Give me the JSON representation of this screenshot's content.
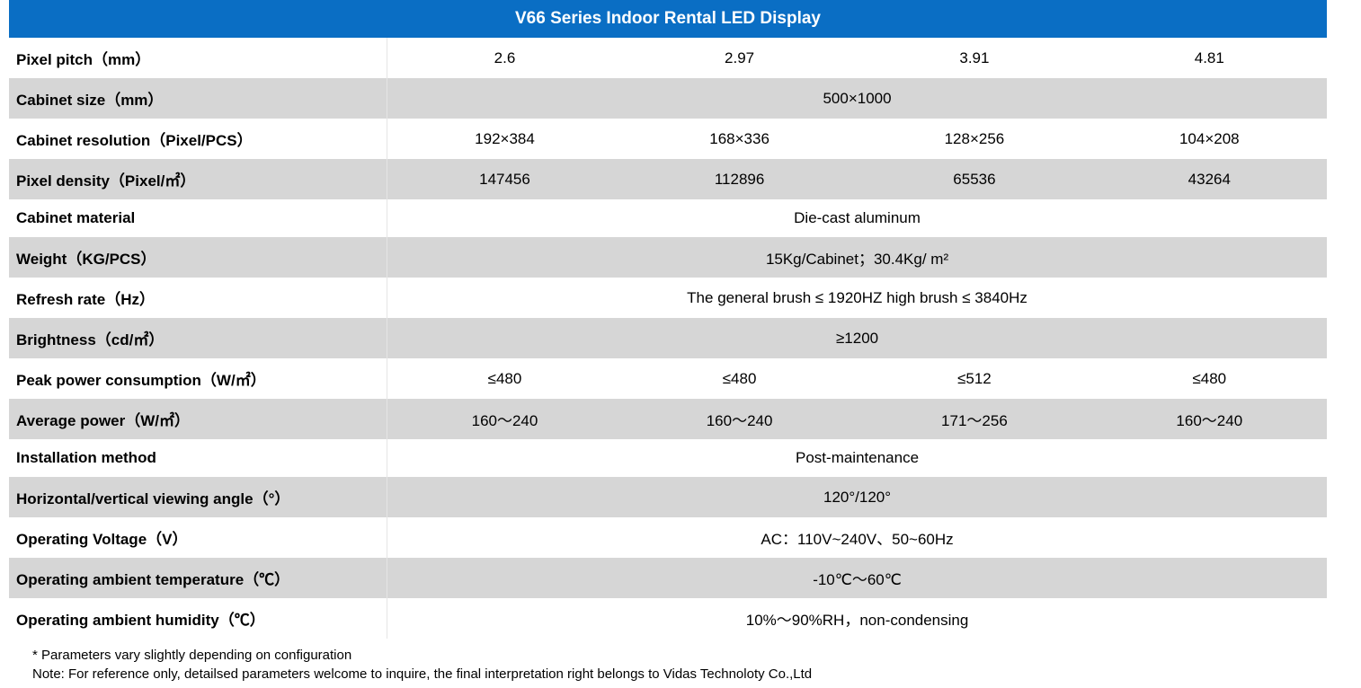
{
  "title": "V66 Series Indoor Rental LED Display",
  "colors": {
    "header_bg": "#0a6ec4",
    "header_text": "#ffffff",
    "row_grey": "#d6d6d6",
    "row_white": "#ffffff",
    "text": "#000000",
    "cell_border": "#e5e5e5"
  },
  "columns": 4,
  "rows": [
    {
      "label": "Pixel pitch（mm）",
      "values": [
        "2.6",
        "2.97",
        "3.91",
        "4.81"
      ],
      "bg": "white"
    },
    {
      "label": "Cabinet size（mm）",
      "span": "500×1000",
      "bg": "grey"
    },
    {
      "label": "Cabinet resolution（Pixel/PCS）",
      "values": [
        "192×384",
        "168×336",
        "128×256",
        "104×208"
      ],
      "bg": "white"
    },
    {
      "label": "Pixel density（Pixel/㎡）",
      "values": [
        "147456",
        "112896",
        "65536",
        "43264"
      ],
      "bg": "grey"
    },
    {
      "label": "Cabinet material",
      "span": "Die-cast aluminum",
      "bg": "white"
    },
    {
      "label": "Weight（KG/PCS）",
      "span": "15Kg/Cabinet；30.4Kg/ m²",
      "bg": "grey"
    },
    {
      "label": "Refresh rate（Hz）",
      "span": "The general brush ≤ 1920HZ high brush ≤ 3840Hz",
      "bg": "white"
    },
    {
      "label": "Brightness（cd/㎡）",
      "span": "≥1200",
      "bg": "grey"
    },
    {
      "label": "Peak power consumption（W/㎡）",
      "values": [
        "≤480",
        "≤480",
        "≤512",
        "≤480"
      ],
      "bg": "white"
    },
    {
      "label": "Average power（W/㎡）",
      "values": [
        "160～240",
        "160～240",
        "171～256",
        "160～240"
      ],
      "bg": "grey"
    },
    {
      "label": "Installation method",
      "span": "Post-maintenance",
      "bg": "white"
    },
    {
      "label": "Horizontal/vertical viewing angle（°）",
      "span": "120°/120°",
      "bg": "grey"
    },
    {
      "label": "Operating Voltage（V）",
      "span": "AC：110V~240V、50~60Hz",
      "bg": "white"
    },
    {
      "label": "Operating ambient temperature（℃）",
      "span": "-10℃～60℃",
      "bg": "grey"
    },
    {
      "label": "Operating ambient humidity（℃）",
      "span": "10%～90%RH，non-condensing",
      "bg": "white"
    }
  ],
  "footnotes": {
    "line1": "* Parameters vary slightly depending on configuration",
    "line2": "Note: For reference only, detailsed parameters welcome to inquire, the final interpretation right belongs to Vidas Technoloty Co.,Ltd"
  }
}
